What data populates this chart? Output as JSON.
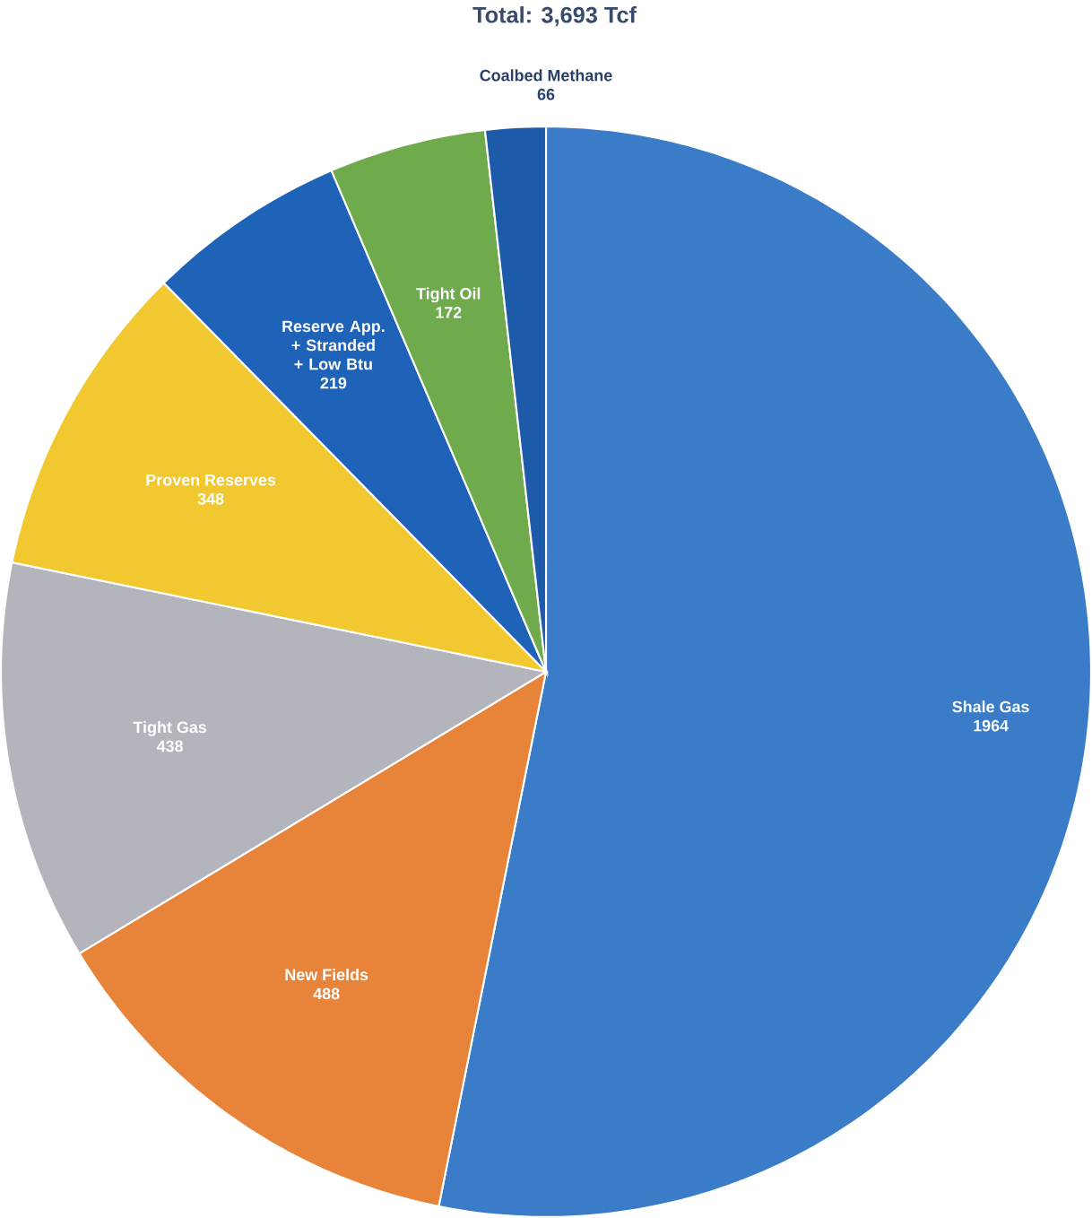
{
  "chart_data": {
    "type": "pie",
    "title": "Total: 3,693 Tcf",
    "categories": [
      "Shale Gas",
      "New Fields",
      "Tight Gas",
      "Proven Reserves",
      "Reserve App. + Stranded + Low Btu",
      "Tight Oil",
      "Coalbed Methane"
    ],
    "values": [
      1964,
      488,
      438,
      348,
      219,
      172,
      66
    ],
    "colors": [
      "#3a7cc8",
      "#e8843a",
      "#b4b4bc",
      "#f2c830",
      "#1f63b8",
      "#6faa4c",
      "#1d5aa8"
    ],
    "data_labels": true
  }
}
